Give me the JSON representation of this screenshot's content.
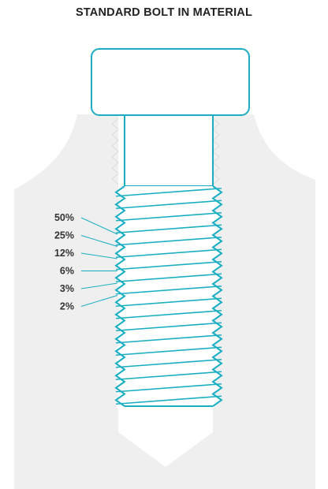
{
  "title": "STANDARD BOLT IN MATERIAL",
  "load_labels": [
    {
      "text": "50%"
    },
    {
      "text": "25%"
    },
    {
      "text": "12%"
    },
    {
      "text": "6%"
    },
    {
      "text": "3%"
    },
    {
      "text": "2%"
    }
  ],
  "colors": {
    "bolt_stroke": "#1aaec2",
    "material_fill": "#efefef",
    "leader_line": "#1aaec2",
    "label_text": "#333333",
    "title_text": "#222222"
  }
}
